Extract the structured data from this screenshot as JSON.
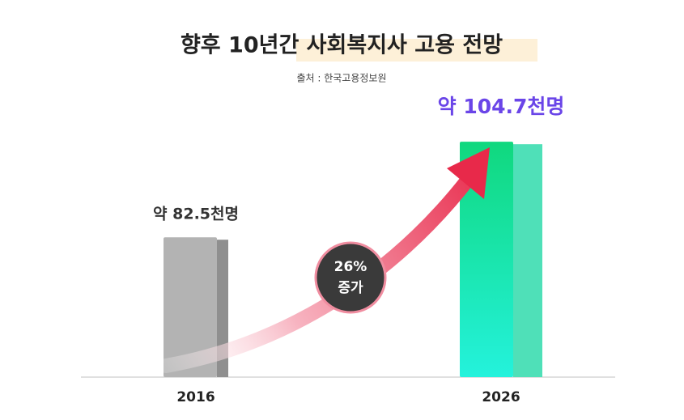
{
  "chart_data": {
    "type": "bar",
    "title": "향후 10년간 사회복지사 고용 전망",
    "subtitle": "출처 : 한국고용정보원",
    "categories": [
      "2016",
      "2026"
    ],
    "values": [
      82.5,
      104.7
    ],
    "value_labels": [
      "약 82.5천명",
      "약 104.7천명"
    ],
    "value_label_colors": [
      "#333333",
      "#6a45e8"
    ],
    "colors": [
      "#b3b3b3",
      "#1ee09a"
    ],
    "ylim": [
      50,
      110
    ],
    "annotation": [
      "26%",
      "증가"
    ]
  }
}
